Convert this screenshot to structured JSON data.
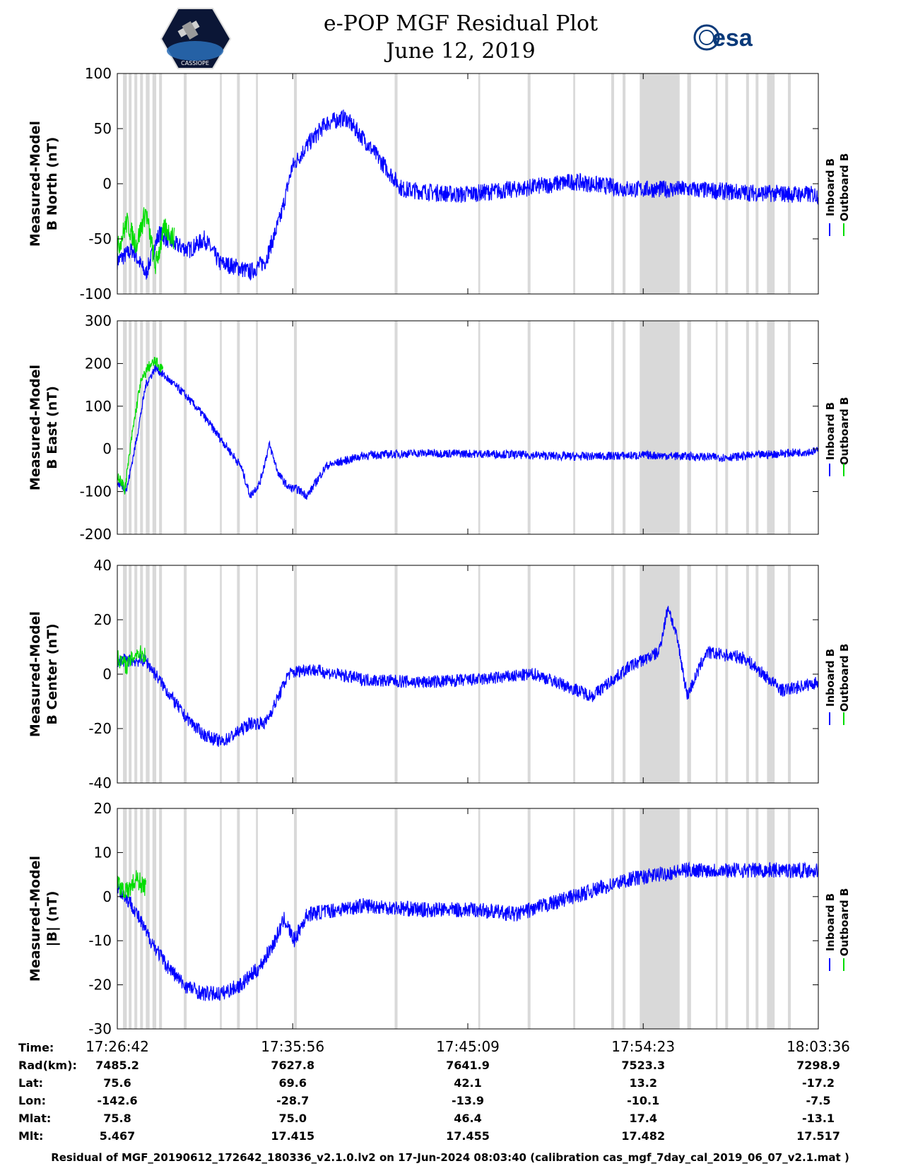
{
  "header": {
    "title_line1": "e-POP MGF Residual Plot",
    "title_line2": "June 12, 2019",
    "agency_logo_text": "esa",
    "mission_logo_text": "CASSIOPE"
  },
  "colors": {
    "inboard": "#0000ff",
    "outboard": "#00dd00",
    "shade": "#d9d9d9",
    "axis": "#000000"
  },
  "legend": {
    "inboard_label": "Inboard B",
    "outboard_label": "Outboard B"
  },
  "chart_data": [
    {
      "type": "line",
      "ylabel_line1": "Measured-Model",
      "ylabel_line2": "B North (nT)",
      "ylim": [
        -100,
        100
      ],
      "yticks": [
        -100,
        -50,
        0,
        50,
        100
      ],
      "series": [
        {
          "name": "Inboard B",
          "x": [
            0,
            0.8,
            1.5,
            2.2,
            3.0,
            3.8,
            4.6,
            5.4,
            6.2,
            7.0,
            7.8,
            8.6,
            9.2,
            10.0,
            11.0,
            12.0,
            13.0,
            15.0,
            18.0,
            21.0,
            24.0,
            27.0,
            30.0,
            33.0,
            36.9
          ],
          "values": [
            -70,
            -60,
            -82,
            -45,
            -55,
            -60,
            -50,
            -72,
            -75,
            -80,
            -70,
            -30,
            15,
            35,
            55,
            60,
            40,
            -5,
            -10,
            -5,
            2,
            -5,
            -5,
            -8,
            -10
          ]
        },
        {
          "name": "Outboard B",
          "x": [
            0,
            0.5,
            1.0,
            1.5,
            2.0,
            2.5,
            3.0
          ],
          "values": [
            -60,
            -35,
            -55,
            -25,
            -75,
            -40,
            -50
          ]
        }
      ]
    },
    {
      "type": "line",
      "ylabel_line1": "Measured-Model",
      "ylabel_line2": "B East (nT)",
      "ylim": [
        -200,
        300
      ],
      "yticks": [
        -200,
        -100,
        0,
        100,
        200,
        300
      ],
      "series": [
        {
          "name": "Inboard B",
          "x": [
            0,
            0.5,
            1.0,
            1.5,
            2.0,
            2.5,
            3.0,
            3.5,
            4.5,
            5.5,
            6.5,
            7.0,
            7.5,
            8.0,
            8.5,
            9.0,
            9.5,
            10.0,
            11.0,
            13.0,
            16.0,
            20.0,
            24.0,
            28.0,
            32.0,
            36.9
          ],
          "values": [
            -80,
            -95,
            20,
            150,
            190,
            170,
            150,
            130,
            80,
            20,
            -40,
            -110,
            -80,
            10,
            -60,
            -90,
            -95,
            -110,
            -40,
            -15,
            -10,
            -12,
            -18,
            -15,
            -20,
            -5
          ]
        },
        {
          "name": "Outboard B",
          "x": [
            0,
            0.4,
            0.8,
            1.2,
            1.6,
            2.0,
            2.4
          ],
          "values": [
            -60,
            -95,
            40,
            150,
            190,
            205,
            185
          ]
        }
      ]
    },
    {
      "type": "line",
      "ylabel_line1": "Measured-Model",
      "ylabel_line2": "B Center (nT)",
      "ylim": [
        -40,
        40
      ],
      "yticks": [
        -40,
        -20,
        0,
        20,
        40
      ],
      "series": [
        {
          "name": "Inboard B",
          "x": [
            0,
            0.8,
            1.5,
            2.5,
            3.5,
            4.5,
            5.5,
            6.2,
            7.0,
            7.8,
            8.5,
            9.0,
            10.0,
            13.0,
            16.0,
            19.0,
            22.0,
            25.0,
            27.0,
            28.5,
            29.0,
            29.5,
            30.0,
            31.0,
            33.0,
            35.0,
            36.9
          ],
          "values": [
            5,
            5,
            5,
            -5,
            -15,
            -22,
            -25,
            -22,
            -18,
            -18,
            -8,
            0,
            2,
            -2,
            -3,
            -2,
            0,
            -8,
            3,
            8,
            25,
            12,
            -8,
            8,
            6,
            -6,
            -3
          ]
        },
        {
          "name": "Outboard B",
          "x": [
            0,
            0.5,
            1.0,
            1.5
          ],
          "values": [
            6,
            3,
            8,
            7
          ]
        }
      ]
    },
    {
      "type": "line",
      "ylabel_line1": "Measured-Model",
      "ylabel_line2": "|B| (nT)",
      "ylim": [
        -30,
        20
      ],
      "yticks": [
        -30,
        -20,
        -10,
        0,
        10,
        20
      ],
      "series": [
        {
          "name": "Inboard B",
          "x": [
            0,
            0.8,
            1.5,
            2.5,
            3.5,
            4.5,
            5.5,
            6.5,
            7.5,
            8.3,
            8.8,
            9.3,
            10.0,
            13.0,
            16.0,
            19.0,
            21.0,
            24.0,
            27.0,
            30.0,
            33.0,
            36.9
          ],
          "values": [
            2,
            -2,
            -8,
            -15,
            -20,
            -22,
            -22,
            -20,
            -16,
            -10,
            -5,
            -10,
            -4,
            -2,
            -3,
            -3,
            -4,
            0,
            4,
            6,
            6,
            6
          ]
        },
        {
          "name": "Outboard B",
          "x": [
            0,
            0.5,
            1.0,
            1.5
          ],
          "values": [
            3,
            1,
            4,
            2
          ]
        }
      ]
    }
  ],
  "shaded_intervals": [
    [
      0.3,
      0.5
    ],
    [
      0.6,
      0.75
    ],
    [
      0.9,
      1.05
    ],
    [
      1.2,
      1.35
    ],
    [
      1.5,
      1.7
    ],
    [
      1.85,
      2.05
    ],
    [
      2.2,
      2.35
    ],
    [
      3.5,
      3.65
    ],
    [
      5.4,
      5.5
    ],
    [
      6.3,
      6.45
    ],
    [
      7.3,
      7.4
    ],
    [
      9.3,
      9.45
    ],
    [
      14.6,
      14.75
    ],
    [
      19.0,
      19.1
    ],
    [
      21.6,
      21.75
    ],
    [
      24.0,
      24.1
    ],
    [
      26.0,
      26.15
    ],
    [
      26.6,
      26.75
    ],
    [
      27.5,
      29.6
    ],
    [
      30.0,
      30.2
    ],
    [
      31.5,
      31.6
    ],
    [
      32.0,
      32.15
    ],
    [
      33.1,
      33.25
    ],
    [
      33.6,
      33.75
    ],
    [
      34.2,
      34.6
    ],
    [
      35.3,
      35.45
    ]
  ],
  "x_axis": {
    "xlim_minutes": [
      0,
      36.9
    ],
    "tick_minutes": [
      0,
      9.233,
      18.45,
      27.683,
      36.9
    ]
  },
  "info_table": {
    "row_labels": [
      "Time:",
      "Rad(km):",
      "Lat:",
      "Lon:",
      "Mlat:",
      "Mlt:"
    ],
    "columns": [
      [
        "17:26:42",
        "7485.2",
        "75.6",
        "-142.6",
        "75.8",
        "5.467"
      ],
      [
        "17:35:56",
        "7627.8",
        "69.6",
        "-28.7",
        "75.0",
        "17.415"
      ],
      [
        "17:45:09",
        "7641.9",
        "42.1",
        "-13.9",
        "46.4",
        "17.455"
      ],
      [
        "17:54:23",
        "7523.3",
        "13.2",
        "-10.1",
        "17.4",
        "17.482"
      ],
      [
        "18:03:36",
        "7298.9",
        "-17.2",
        "-7.5",
        "-13.1",
        "17.517"
      ]
    ]
  },
  "footer": "Residual of MGF_20190612_172642_180336_v2.1.0.lv2 on 17-Jun-2024 08:03:40 (calibration cas_mgf_7day_cal_2019_06_07_v2.1.mat )"
}
